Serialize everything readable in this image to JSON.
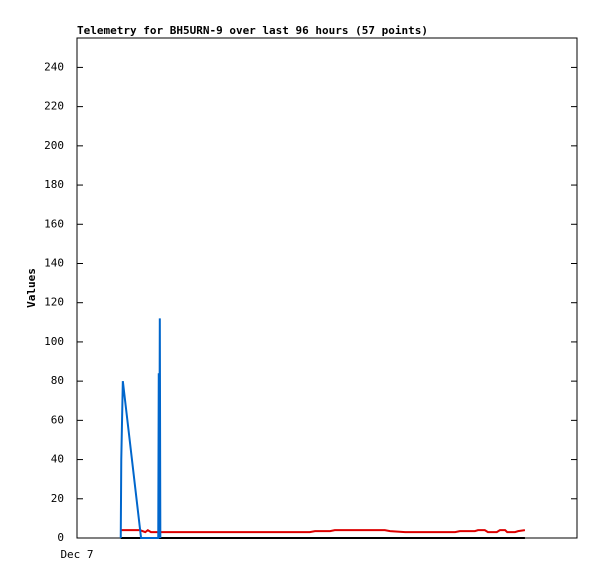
{
  "chart_data": {
    "type": "line",
    "title": "Telemetry for BH5URN-9 over last 96 hours (57 points)",
    "y_label": "Values",
    "xlim": [
      0,
      96
    ],
    "xticks": [
      {
        "value": 0,
        "label": "Dec 7"
      }
    ],
    "ylim": [
      0,
      255
    ],
    "yticks": [
      0,
      20,
      40,
      60,
      80,
      100,
      120,
      140,
      160,
      180,
      200,
      220,
      240
    ],
    "series": [
      {
        "color": "#000000",
        "x": [
          8.4,
          86.0
        ],
        "values": [
          0,
          0
        ]
      },
      {
        "color": "#dd0000",
        "x": [
          8.4,
          12.1,
          13.1,
          13.6,
          14.2,
          15.0,
          44.7,
          45.7,
          48.6,
          49.5,
          59.1,
          60.1,
          63.0,
          72.6,
          73.5,
          76.4,
          77.0,
          78.3,
          78.9,
          80.6,
          81.2,
          82.2,
          82.6,
          84.1,
          84.7,
          86.0
        ],
        "values": [
          4,
          4,
          3,
          4,
          3,
          3,
          3,
          3.5,
          3.5,
          4,
          4,
          3.5,
          3,
          3,
          3.5,
          3.5,
          4,
          4,
          3,
          3,
          4,
          4,
          3,
          3,
          3.5,
          4
        ]
      },
      {
        "color": "#0066cc",
        "x": [
          8.4,
          8.5,
          8.8,
          12.3,
          15.6,
          15.7,
          15.8,
          15.9,
          16.0
        ],
        "values": [
          0,
          40,
          80,
          0,
          0,
          84,
          0,
          112,
          0
        ]
      }
    ]
  }
}
